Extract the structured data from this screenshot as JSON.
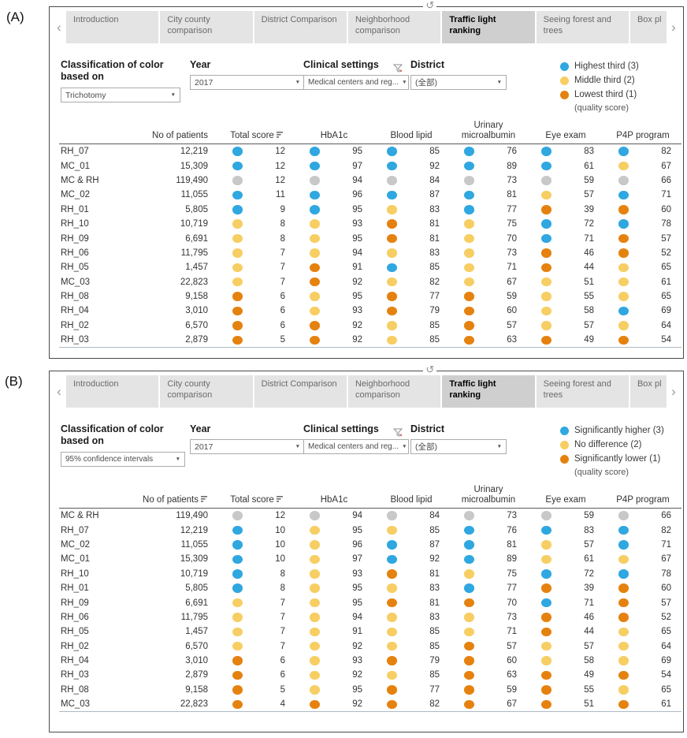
{
  "panel_labels": [
    "(A)",
    "(B)"
  ],
  "colors": {
    "blue": "#2FA7E0",
    "yellow": "#F7CE63",
    "orange": "#E5820F",
    "gray": "#C8C8C8"
  },
  "icons": {
    "prev": "‹",
    "next": "›",
    "refresh": "↺",
    "caret": "▼"
  },
  "tabs": {
    "items": [
      "Introduction",
      "City county comparison",
      "District Comparison",
      "Neighborhood comparison",
      "Traffic light ranking",
      "Seeing forest and trees",
      "Box pl"
    ],
    "active": "Traffic light ranking"
  },
  "table_headers": {
    "patients": "No of patients",
    "metrics": [
      "Total score",
      "HbA1c",
      "Blood lipid",
      "Urinary microalbumin",
      "Eye exam",
      "P4P program"
    ]
  },
  "panels": [
    {
      "label": "(A)",
      "filters": {
        "classification_label": "Classification of color based on",
        "classification_value": "Trichotomy",
        "year_label": "Year",
        "year_value": "2017",
        "clinical_label": "Clinical settings",
        "clinical_value": "Medical centers and reg...",
        "district_label": "District",
        "district_value": "(全部)"
      },
      "legend": {
        "items": [
          {
            "color": "blue",
            "label": "Highest third (3)"
          },
          {
            "color": "yellow",
            "label": "Middle third (2)"
          },
          {
            "color": "orange",
            "label": "Lowest third (1)"
          }
        ],
        "note": "(quality score)"
      },
      "patients_sorted": false,
      "rows": [
        {
          "name": "RH_07",
          "patients": "12,219",
          "cells": [
            [
              "blue",
              "12"
            ],
            [
              "blue",
              "95"
            ],
            [
              "blue",
              "85"
            ],
            [
              "blue",
              "76"
            ],
            [
              "blue",
              "83"
            ],
            [
              "blue",
              "82"
            ]
          ]
        },
        {
          "name": "MC_01",
          "patients": "15,309",
          "cells": [
            [
              "blue",
              "12"
            ],
            [
              "blue",
              "97"
            ],
            [
              "blue",
              "92"
            ],
            [
              "blue",
              "89"
            ],
            [
              "blue",
              "61"
            ],
            [
              "yellow",
              "67"
            ]
          ]
        },
        {
          "name": "MC & RH",
          "patients": "119,490",
          "cells": [
            [
              "gray",
              "12"
            ],
            [
              "gray",
              "94"
            ],
            [
              "gray",
              "84"
            ],
            [
              "gray",
              "73"
            ],
            [
              "gray",
              "59"
            ],
            [
              "gray",
              "66"
            ]
          ]
        },
        {
          "name": "MC_02",
          "patients": "11,055",
          "cells": [
            [
              "blue",
              "11"
            ],
            [
              "blue",
              "96"
            ],
            [
              "blue",
              "87"
            ],
            [
              "blue",
              "81"
            ],
            [
              "yellow",
              "57"
            ],
            [
              "blue",
              "71"
            ]
          ]
        },
        {
          "name": "RH_01",
          "patients": "5,805",
          "cells": [
            [
              "blue",
              "9"
            ],
            [
              "blue",
              "95"
            ],
            [
              "yellow",
              "83"
            ],
            [
              "blue",
              "77"
            ],
            [
              "orange",
              "39"
            ],
            [
              "orange",
              "60"
            ]
          ]
        },
        {
          "name": "RH_10",
          "patients": "10,719",
          "cells": [
            [
              "yellow",
              "8"
            ],
            [
              "yellow",
              "93"
            ],
            [
              "orange",
              "81"
            ],
            [
              "yellow",
              "75"
            ],
            [
              "blue",
              "72"
            ],
            [
              "blue",
              "78"
            ]
          ]
        },
        {
          "name": "RH_09",
          "patients": "6,691",
          "cells": [
            [
              "yellow",
              "8"
            ],
            [
              "yellow",
              "95"
            ],
            [
              "orange",
              "81"
            ],
            [
              "yellow",
              "70"
            ],
            [
              "blue",
              "71"
            ],
            [
              "orange",
              "57"
            ]
          ]
        },
        {
          "name": "RH_06",
          "patients": "11,795",
          "cells": [
            [
              "yellow",
              "7"
            ],
            [
              "yellow",
              "94"
            ],
            [
              "yellow",
              "83"
            ],
            [
              "yellow",
              "73"
            ],
            [
              "orange",
              "46"
            ],
            [
              "orange",
              "52"
            ]
          ]
        },
        {
          "name": "RH_05",
          "patients": "1,457",
          "cells": [
            [
              "yellow",
              "7"
            ],
            [
              "orange",
              "91"
            ],
            [
              "blue",
              "85"
            ],
            [
              "yellow",
              "71"
            ],
            [
              "orange",
              "44"
            ],
            [
              "yellow",
              "65"
            ]
          ]
        },
        {
          "name": "MC_03",
          "patients": "22,823",
          "cells": [
            [
              "yellow",
              "7"
            ],
            [
              "orange",
              "92"
            ],
            [
              "yellow",
              "82"
            ],
            [
              "yellow",
              "67"
            ],
            [
              "yellow",
              "51"
            ],
            [
              "yellow",
              "61"
            ]
          ]
        },
        {
          "name": "RH_08",
          "patients": "9,158",
          "cells": [
            [
              "orange",
              "6"
            ],
            [
              "yellow",
              "95"
            ],
            [
              "orange",
              "77"
            ],
            [
              "orange",
              "59"
            ],
            [
              "yellow",
              "55"
            ],
            [
              "yellow",
              "65"
            ]
          ]
        },
        {
          "name": "RH_04",
          "patients": "3,010",
          "cells": [
            [
              "orange",
              "6"
            ],
            [
              "yellow",
              "93"
            ],
            [
              "orange",
              "79"
            ],
            [
              "orange",
              "60"
            ],
            [
              "yellow",
              "58"
            ],
            [
              "blue",
              "69"
            ]
          ]
        },
        {
          "name": "RH_02",
          "patients": "6,570",
          "cells": [
            [
              "orange",
              "6"
            ],
            [
              "orange",
              "92"
            ],
            [
              "yellow",
              "85"
            ],
            [
              "orange",
              "57"
            ],
            [
              "yellow",
              "57"
            ],
            [
              "yellow",
              "64"
            ]
          ]
        },
        {
          "name": "RH_03",
          "patients": "2,879",
          "cells": [
            [
              "orange",
              "5"
            ],
            [
              "orange",
              "92"
            ],
            [
              "yellow",
              "85"
            ],
            [
              "orange",
              "63"
            ],
            [
              "orange",
              "49"
            ],
            [
              "orange",
              "54"
            ]
          ]
        }
      ]
    },
    {
      "label": "(B)",
      "filters": {
        "classification_label": "Classification of color based on",
        "classification_value": "95% confidence intervals",
        "year_label": "Year",
        "year_value": "2017",
        "clinical_label": "Clinical settings",
        "clinical_value": "Medical centers and reg...",
        "district_label": "District",
        "district_value": "(全部)"
      },
      "legend": {
        "items": [
          {
            "color": "blue",
            "label": "Significantly higher (3)"
          },
          {
            "color": "yellow",
            "label": "No difference (2)"
          },
          {
            "color": "orange",
            "label": "Significantly lower (1)"
          }
        ],
        "note": "(quality score)"
      },
      "patients_sorted": true,
      "rows": [
        {
          "name": "MC & RH",
          "patients": "119,490",
          "cells": [
            [
              "gray",
              "12"
            ],
            [
              "gray",
              "94"
            ],
            [
              "gray",
              "84"
            ],
            [
              "gray",
              "73"
            ],
            [
              "gray",
              "59"
            ],
            [
              "gray",
              "66"
            ]
          ]
        },
        {
          "name": "RH_07",
          "patients": "12,219",
          "cells": [
            [
              "blue",
              "10"
            ],
            [
              "yellow",
              "95"
            ],
            [
              "yellow",
              "85"
            ],
            [
              "blue",
              "76"
            ],
            [
              "blue",
              "83"
            ],
            [
              "blue",
              "82"
            ]
          ]
        },
        {
          "name": "MC_02",
          "patients": "11,055",
          "cells": [
            [
              "blue",
              "10"
            ],
            [
              "yellow",
              "96"
            ],
            [
              "blue",
              "87"
            ],
            [
              "blue",
              "81"
            ],
            [
              "yellow",
              "57"
            ],
            [
              "blue",
              "71"
            ]
          ]
        },
        {
          "name": "MC_01",
          "patients": "15,309",
          "cells": [
            [
              "blue",
              "10"
            ],
            [
              "yellow",
              "97"
            ],
            [
              "blue",
              "92"
            ],
            [
              "blue",
              "89"
            ],
            [
              "yellow",
              "61"
            ],
            [
              "yellow",
              "67"
            ]
          ]
        },
        {
          "name": "RH_10",
          "patients": "10,719",
          "cells": [
            [
              "blue",
              "8"
            ],
            [
              "yellow",
              "93"
            ],
            [
              "orange",
              "81"
            ],
            [
              "yellow",
              "75"
            ],
            [
              "blue",
              "72"
            ],
            [
              "blue",
              "78"
            ]
          ]
        },
        {
          "name": "RH_01",
          "patients": "5,805",
          "cells": [
            [
              "blue",
              "8"
            ],
            [
              "yellow",
              "95"
            ],
            [
              "yellow",
              "83"
            ],
            [
              "blue",
              "77"
            ],
            [
              "orange",
              "39"
            ],
            [
              "orange",
              "60"
            ]
          ]
        },
        {
          "name": "RH_09",
          "patients": "6,691",
          "cells": [
            [
              "yellow",
              "7"
            ],
            [
              "yellow",
              "95"
            ],
            [
              "orange",
              "81"
            ],
            [
              "orange",
              "70"
            ],
            [
              "blue",
              "71"
            ],
            [
              "orange",
              "57"
            ]
          ]
        },
        {
          "name": "RH_06",
          "patients": "11,795",
          "cells": [
            [
              "yellow",
              "7"
            ],
            [
              "yellow",
              "94"
            ],
            [
              "yellow",
              "83"
            ],
            [
              "yellow",
              "73"
            ],
            [
              "orange",
              "46"
            ],
            [
              "orange",
              "52"
            ]
          ]
        },
        {
          "name": "RH_05",
          "patients": "1,457",
          "cells": [
            [
              "yellow",
              "7"
            ],
            [
              "yellow",
              "91"
            ],
            [
              "yellow",
              "85"
            ],
            [
              "yellow",
              "71"
            ],
            [
              "orange",
              "44"
            ],
            [
              "yellow",
              "65"
            ]
          ]
        },
        {
          "name": "RH_02",
          "patients": "6,570",
          "cells": [
            [
              "yellow",
              "7"
            ],
            [
              "yellow",
              "92"
            ],
            [
              "yellow",
              "85"
            ],
            [
              "orange",
              "57"
            ],
            [
              "yellow",
              "57"
            ],
            [
              "yellow",
              "64"
            ]
          ]
        },
        {
          "name": "RH_04",
          "patients": "3,010",
          "cells": [
            [
              "orange",
              "6"
            ],
            [
              "yellow",
              "93"
            ],
            [
              "orange",
              "79"
            ],
            [
              "orange",
              "60"
            ],
            [
              "yellow",
              "58"
            ],
            [
              "yellow",
              "69"
            ]
          ]
        },
        {
          "name": "RH_03",
          "patients": "2,879",
          "cells": [
            [
              "orange",
              "6"
            ],
            [
              "yellow",
              "92"
            ],
            [
              "yellow",
              "85"
            ],
            [
              "orange",
              "63"
            ],
            [
              "orange",
              "49"
            ],
            [
              "orange",
              "54"
            ]
          ]
        },
        {
          "name": "RH_08",
          "patients": "9,158",
          "cells": [
            [
              "orange",
              "5"
            ],
            [
              "yellow",
              "95"
            ],
            [
              "orange",
              "77"
            ],
            [
              "orange",
              "59"
            ],
            [
              "orange",
              "55"
            ],
            [
              "yellow",
              "65"
            ]
          ]
        },
        {
          "name": "MC_03",
          "patients": "22,823",
          "cells": [
            [
              "orange",
              "4"
            ],
            [
              "orange",
              "92"
            ],
            [
              "orange",
              "82"
            ],
            [
              "orange",
              "67"
            ],
            [
              "orange",
              "51"
            ],
            [
              "orange",
              "61"
            ]
          ]
        }
      ]
    }
  ]
}
